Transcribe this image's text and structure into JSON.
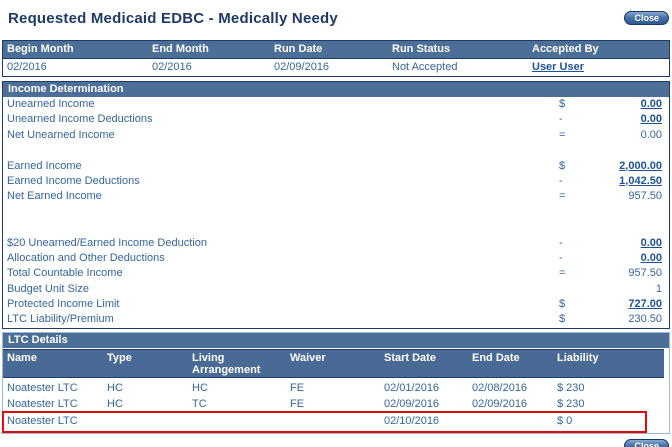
{
  "page": {
    "title": "Requested Medicaid EDBC - Medically Needy",
    "close_label": "Close"
  },
  "colors": {
    "header_bar": "#4c6f97",
    "border_navy": "#1e3c6b",
    "border_light": "#9db8d2",
    "text_blue": "#34669e",
    "link_blue": "#1d5296",
    "title_navy": "#1e3a68",
    "highlight_red": "#e00b0b"
  },
  "summary": {
    "columns": [
      "Begin Month",
      "End Month",
      "Run Date",
      "Run Status",
      "Accepted By"
    ],
    "row": {
      "begin_month": "02/2016",
      "end_month": "02/2016",
      "run_date": "02/09/2016",
      "run_status": "Not Accepted",
      "accepted_by": "User User"
    }
  },
  "income_determination": {
    "title": "Income Determination",
    "rows": [
      {
        "label": "Unearned Income",
        "op": "$",
        "value": "0.00"
      },
      {
        "label": "Unearned Income Deductions",
        "op": "-",
        "value": "0.00"
      },
      {
        "label": "Net Unearned Income",
        "op": "=",
        "value": "0.00"
      },
      {
        "label": "",
        "op": "",
        "value": ""
      },
      {
        "label": "Earned Income",
        "op": "$",
        "value": "2,000.00"
      },
      {
        "label": "Earned Income Deductions",
        "op": "-",
        "value": "1,042.50"
      },
      {
        "label": "Net Earned Income",
        "op": "=",
        "value": "957.50"
      },
      {
        "label": "",
        "op": "",
        "value": ""
      },
      {
        "label": "",
        "op": "",
        "value": ""
      },
      {
        "label": "$20 Unearned/Earned Income Deduction",
        "op": "-",
        "value": "0.00"
      },
      {
        "label": "Allocation and Other Deductions",
        "op": "-",
        "value": "0.00"
      },
      {
        "label": "Total Countable Income",
        "op": "=",
        "value": "957.50"
      },
      {
        "label": "Budget Unit Size",
        "op": "",
        "value": "1"
      },
      {
        "label": "Protected Income Limit",
        "op": "$",
        "value": "727.00"
      },
      {
        "label": "LTC Liability/Premium",
        "op": "$",
        "value": "230.50"
      }
    ]
  },
  "ltc_details": {
    "title": "LTC Details",
    "columns": [
      "Name",
      "Type",
      "Living Arrangement",
      "Waiver",
      "Start Date",
      "End Date",
      "Liability"
    ],
    "rows": [
      {
        "name": "Noatester LTC",
        "type": "HC",
        "living": "HC",
        "waiver": "FE",
        "start": "02/01/2016",
        "end": "02/08/2016",
        "liability": "$ 230"
      },
      {
        "name": "Noatester LTC",
        "type": "HC",
        "living": "TC",
        "waiver": "FE",
        "start": "02/09/2016",
        "end": "02/09/2016",
        "liability": "$ 230"
      },
      {
        "name": "Noatester LTC",
        "type": "",
        "living": "",
        "waiver": "",
        "start": "02/10/2016",
        "end": "",
        "liability": "$ 0"
      }
    ]
  }
}
